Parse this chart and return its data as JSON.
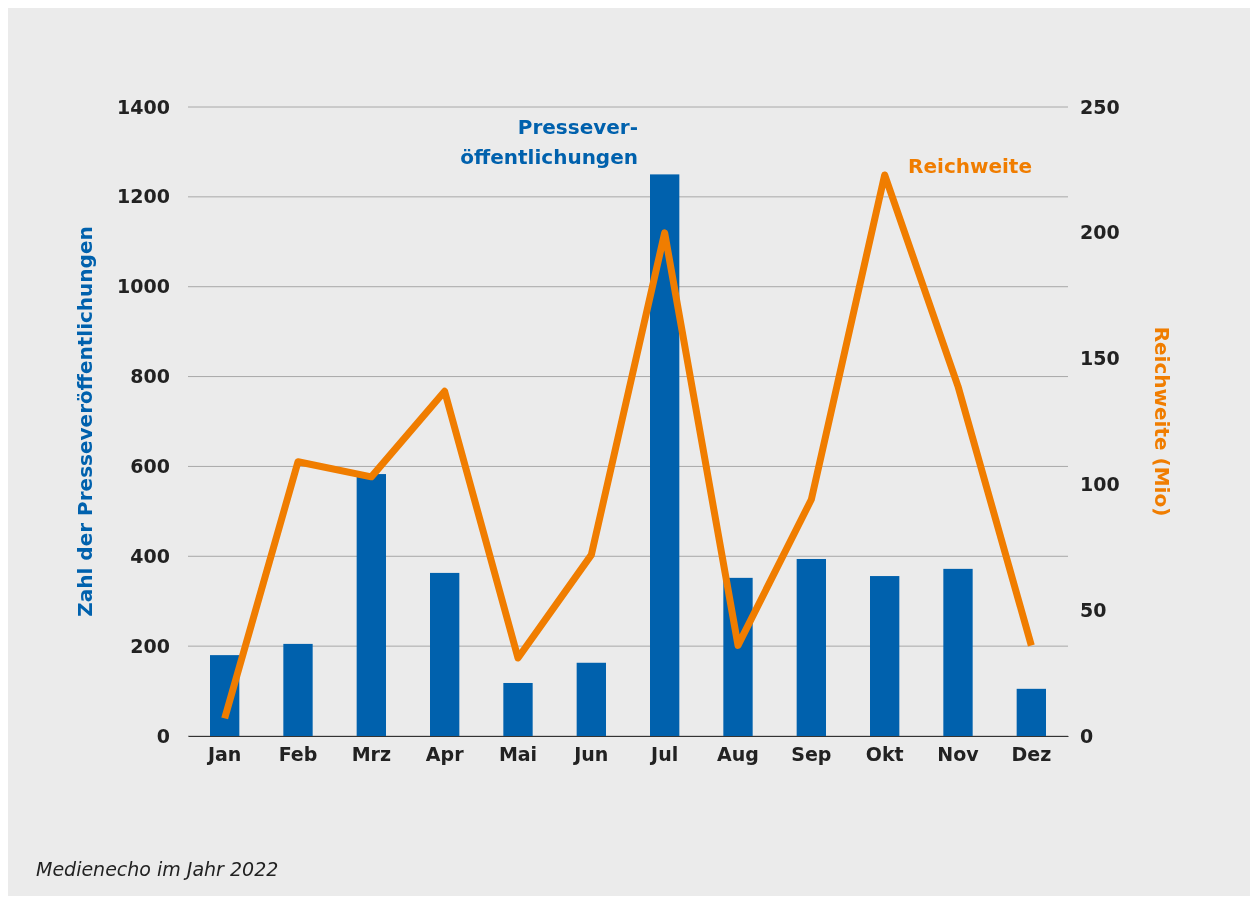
{
  "chart_data": {
    "type": "bar",
    "categories": [
      "Jan",
      "Feb",
      "Mrz",
      "Apr",
      "Mai",
      "Jun",
      "Jul",
      "Aug",
      "Sep",
      "Okt",
      "Nov",
      "Dez"
    ],
    "series": [
      {
        "name": "Pressever-öffentlichungen",
        "color": "#0061ad",
        "values": [
          180,
          205,
          583,
          363,
          118,
          163,
          1250,
          352,
          394,
          356,
          372,
          105
        ]
      },
      {
        "name": "Reichweite",
        "type": "line",
        "axis": "y2",
        "color": "#f07d00",
        "values": [
          7,
          109,
          103,
          137,
          31,
          72,
          200,
          36,
          94,
          223,
          139,
          36
        ]
      }
    ],
    "ylabel": "Zahl der Presseveröffentlichungen",
    "y2label": "Reichweite (Mio)",
    "ylim": [
      0,
      1400
    ],
    "yticks": [
      0,
      200,
      400,
      600,
      800,
      1000,
      1200,
      1400
    ],
    "y2lim": [
      0,
      250
    ],
    "y2ticks": [
      0,
      50,
      100,
      150,
      200,
      250
    ],
    "grid": "y",
    "marker": "none",
    "line_style": "solid",
    "annotations": [
      "Medienecho im Jahr 2022"
    ]
  }
}
